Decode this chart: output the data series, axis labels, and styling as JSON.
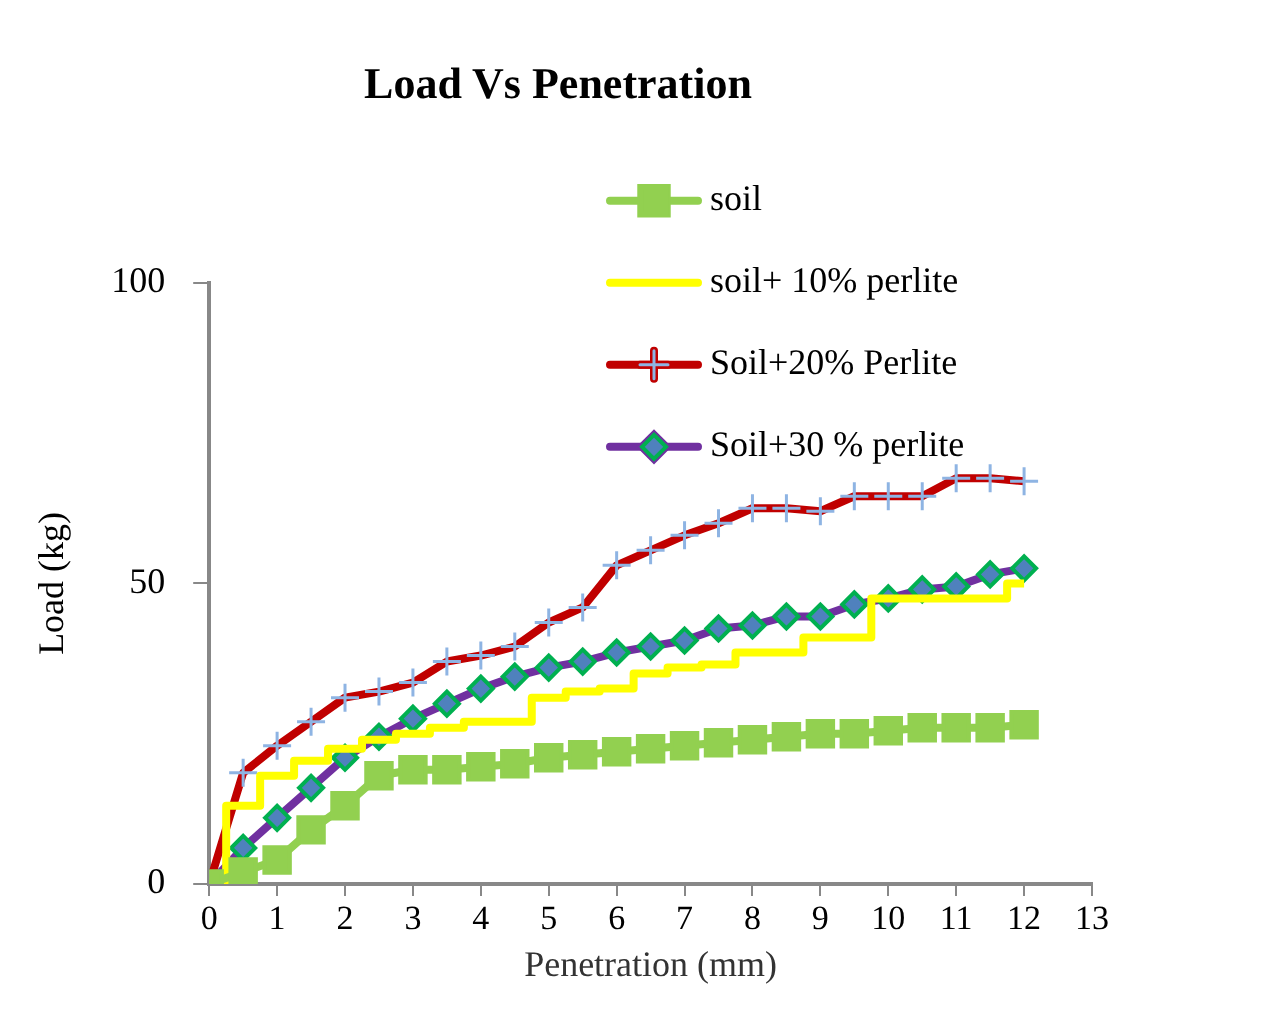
{
  "chart_data": {
    "type": "line",
    "title": "Load Vs Penetration",
    "xlabel": "Penetration (mm)",
    "ylabel": "Load (kg)",
    "x": [
      0,
      0.5,
      1,
      1.5,
      2,
      2.5,
      3,
      3.5,
      4,
      4.5,
      5,
      5.5,
      6,
      6.5,
      7,
      7.5,
      8,
      8.5,
      9,
      9.5,
      10,
      10.5,
      11,
      11.5,
      12
    ],
    "series": [
      {
        "name": "soil",
        "color": "#92d050",
        "marker": "square",
        "values": [
          0,
          2,
          4,
          9,
          13,
          18,
          19,
          19,
          19.5,
          20,
          21,
          21.5,
          22,
          22.5,
          23,
          23.5,
          24,
          24.5,
          25,
          25,
          25.5,
          26,
          26,
          26,
          26.5
        ]
      },
      {
        "name": "soil+ 10% perlite",
        "color": "#ffff00",
        "marker": "none",
        "type": "step",
        "values": [
          0,
          13,
          18,
          20.5,
          22.5,
          24,
          25,
          26,
          27,
          27,
          31,
          32,
          32.5,
          35,
          36,
          36.5,
          38.5,
          38.5,
          41,
          41,
          47.5,
          47.5,
          47.5,
          47.5,
          50
        ]
      },
      {
        "name": "Soil+20% Perlite",
        "color": "#c00000",
        "marker": "cross",
        "values": [
          0,
          18.5,
          23,
          27,
          31,
          32,
          33.5,
          37,
          38,
          39.5,
          43.5,
          46,
          53,
          55.5,
          58,
          60,
          62.5,
          62.5,
          62,
          64.5,
          64.5,
          64.5,
          67.5,
          67.5,
          67
        ]
      },
      {
        "name": "Soil+30 % perlite",
        "color": "#7030a0",
        "marker": "diamond",
        "values": [
          0,
          6,
          11,
          16,
          21,
          24.5,
          27.5,
          30,
          32.5,
          34.5,
          36,
          37,
          38.5,
          39.5,
          40.5,
          42.5,
          43,
          44.5,
          44.5,
          46.5,
          47.5,
          49,
          49.5,
          51.5,
          52.5
        ]
      }
    ],
    "xlim": [
      0,
      13
    ],
    "xticks": [
      0,
      1,
      2,
      3,
      4,
      5,
      6,
      7,
      8,
      9,
      10,
      11,
      12,
      13
    ],
    "ylim": [
      0,
      100
    ],
    "yticks": [
      0,
      50,
      100
    ],
    "grid": false,
    "legend": "top right"
  }
}
